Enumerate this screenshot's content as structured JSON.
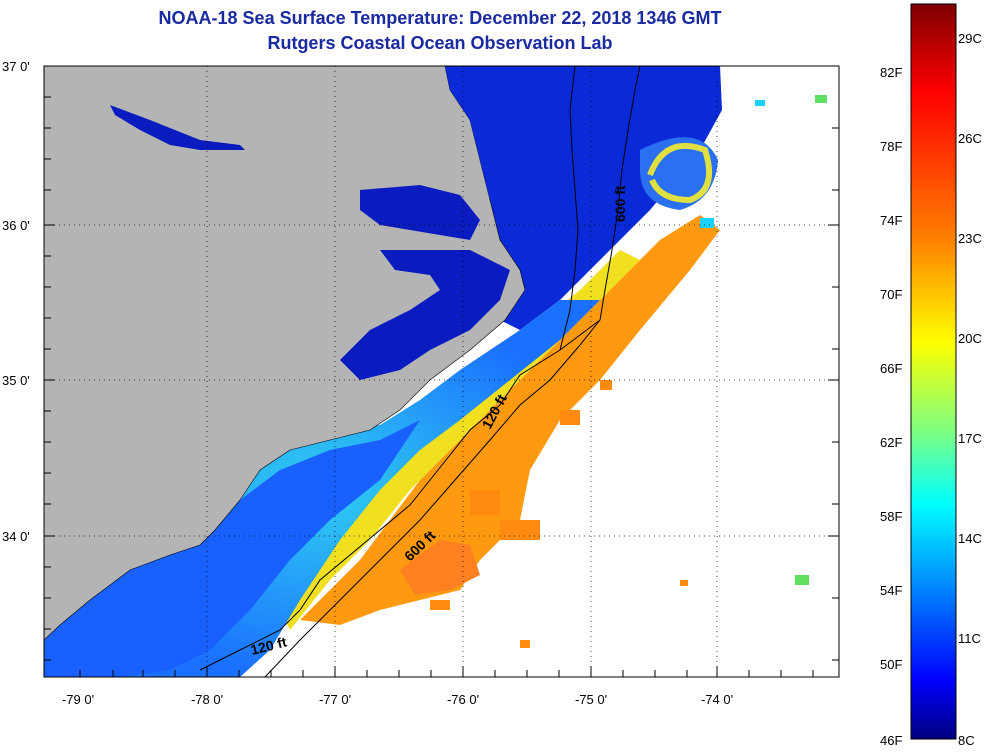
{
  "title_line1": "NOAA-18 Sea Surface Temperature:  December 22, 2018 1346 GMT",
  "title_line2": "Rutgers Coastal Ocean Observation Lab",
  "map": {
    "lon_ticks": [
      "-79 0'",
      "-78 0'",
      "-77 0'",
      "-76 0'",
      "-75 0'",
      "-74 0'"
    ],
    "lat_ticks": [
      "37 0'",
      "36 0'",
      "35 0'",
      "34 0'"
    ],
    "lon_range": [
      -79.3,
      -73.05
    ],
    "lat_range": [
      33.15,
      37.0
    ],
    "grid": true,
    "land_color": "#b4b4b4",
    "no_data_color": "#ffffff",
    "contours": [
      {
        "label": "600 ft"
      },
      {
        "label": "120 ft"
      },
      {
        "label": "120 ft"
      },
      {
        "label": "600 ft"
      }
    ]
  },
  "colorbar": {
    "fahrenheit": [
      "82F",
      "78F",
      "74F",
      "70F",
      "66F",
      "62F",
      "58F",
      "54F",
      "50F",
      "46F"
    ],
    "celsius": [
      "29C",
      "26C",
      "23C",
      "20C",
      "17C",
      "14C",
      "11C",
      "8C"
    ],
    "colors": [
      "#7f0000",
      "#ff0000",
      "#ff8000",
      "#ffff00",
      "#80ff80",
      "#00ffff",
      "#0080ff",
      "#0000ff",
      "#00007f"
    ]
  }
}
